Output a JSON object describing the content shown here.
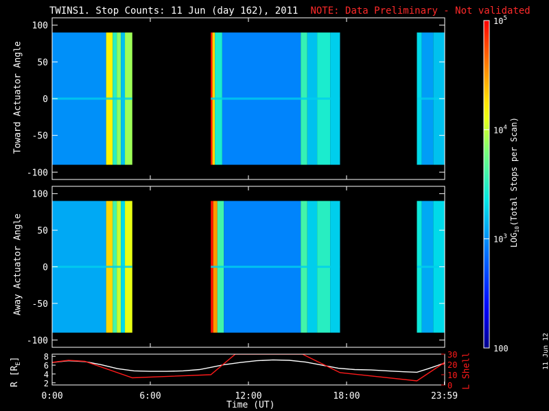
{
  "page": {
    "title": "TWINS1. Stop Counts: 11 Jun (day 162), 2011",
    "note": "NOTE: Data Preliminary - Not validated",
    "date_stamp": "11 Jun 12",
    "colors": {
      "background": "#000000",
      "axes": "#ffffff",
      "note": "#ff2a2a",
      "lshell": "#ff1a1a",
      "radius": "#ffffff"
    }
  },
  "chart_data": [
    {
      "type": "heatmap",
      "ylabel": "Toward Actuator Angle",
      "ylim": [
        -110,
        110
      ],
      "yticks": [
        100,
        50,
        0,
        -50,
        -100
      ],
      "x_hours": [
        0,
        24
      ],
      "angle_range": [
        -90,
        90
      ],
      "data_intervals_h": [
        [
          0,
          4.9
        ],
        [
          9.7,
          17.6
        ],
        [
          22.3,
          24
        ]
      ],
      "bands": [
        {
          "x": [
            0,
            3.3
          ],
          "level": 3.0,
          "note": "background"
        },
        {
          "x": [
            3.3,
            3.7
          ],
          "level": 4.2
        },
        {
          "x": [
            3.7,
            3.95
          ],
          "level": 3.5
        },
        {
          "x": [
            3.95,
            4.2
          ],
          "level": 3.85
        },
        {
          "x": [
            4.2,
            4.45
          ],
          "level": 3.2
        },
        {
          "x": [
            4.45,
            4.9
          ],
          "level": 3.9
        },
        {
          "x": [
            9.7,
            9.8
          ],
          "level": 4.9
        },
        {
          "x": [
            9.8,
            9.95
          ],
          "level": 4.3
        },
        {
          "x": [
            9.95,
            10.4
          ],
          "level": 3.45
        },
        {
          "x": [
            10.4,
            15.2
          ],
          "level": 2.95
        },
        {
          "x": [
            15.2,
            15.6
          ],
          "level": 3.55
        },
        {
          "x": [
            15.6,
            16.2
          ],
          "level": 3.2
        },
        {
          "x": [
            16.2,
            17.0
          ],
          "level": 3.45
        },
        {
          "x": [
            17.0,
            17.6
          ],
          "level": 3.25
        },
        {
          "x": [
            22.3,
            22.6
          ],
          "level": 3.3
        },
        {
          "x": [
            22.6,
            23.3
          ],
          "level": 3.05
        },
        {
          "x": [
            23.3,
            24
          ],
          "level": 3.2
        }
      ]
    },
    {
      "type": "heatmap",
      "ylabel": "Away Actuator Angle",
      "ylim": [
        -110,
        110
      ],
      "yticks": [
        100,
        50,
        0,
        -50,
        -100
      ],
      "x_hours": [
        0,
        24
      ],
      "angle_range": [
        -90,
        90
      ],
      "data_intervals_h": [
        [
          0,
          4.9
        ],
        [
          9.7,
          17.6
        ],
        [
          22.3,
          24
        ]
      ],
      "bands": [
        {
          "x": [
            0,
            3.3
          ],
          "level": 3.1
        },
        {
          "x": [
            3.3,
            3.7
          ],
          "level": 4.3
        },
        {
          "x": [
            3.7,
            3.95
          ],
          "level": 3.6
        },
        {
          "x": [
            3.95,
            4.2
          ],
          "level": 4.0
        },
        {
          "x": [
            4.2,
            4.45
          ],
          "level": 3.3
        },
        {
          "x": [
            4.45,
            4.9
          ],
          "level": 4.1
        },
        {
          "x": [
            9.7,
            9.85
          ],
          "level": 4.95
        },
        {
          "x": [
            9.85,
            10.1
          ],
          "level": 4.5
        },
        {
          "x": [
            10.1,
            10.5
          ],
          "level": 3.6
        },
        {
          "x": [
            10.5,
            15.2
          ],
          "level": 2.95
        },
        {
          "x": [
            15.2,
            15.6
          ],
          "level": 3.6
        },
        {
          "x": [
            15.6,
            16.2
          ],
          "level": 3.25
        },
        {
          "x": [
            16.2,
            17.0
          ],
          "level": 3.5
        },
        {
          "x": [
            17.0,
            17.6
          ],
          "level": 3.25
        },
        {
          "x": [
            22.3,
            22.6
          ],
          "level": 3.4
        },
        {
          "x": [
            22.6,
            23.3
          ],
          "level": 3.1
        },
        {
          "x": [
            23.3,
            24
          ],
          "level": 3.3
        }
      ]
    },
    {
      "type": "line",
      "xlabel": "Time (UT)",
      "xticks": [
        "0:00",
        "6:00",
        "12:00",
        "18:00",
        "23:59"
      ],
      "xtick_hours": [
        0,
        6,
        12,
        18,
        23.98
      ],
      "x_hours": [
        0,
        24
      ],
      "left_axis": {
        "label": "R [R",
        "label_sub": "E",
        "label_end": "]",
        "range": [
          1.5,
          8.5
        ],
        "ticks": [
          2,
          4,
          6,
          8
        ]
      },
      "right_axis": {
        "label": "L Shell",
        "range": [
          0,
          30
        ],
        "ticks": [
          0,
          10,
          20,
          30
        ]
      },
      "series": [
        {
          "axis": "left",
          "color": "#ffffff",
          "x": [
            0,
            1,
            2,
            3,
            4,
            5,
            6,
            7,
            8,
            9,
            9.7,
            10.5,
            11.5,
            12.5,
            13.5,
            14.5,
            15.5,
            16.5,
            17.5,
            18.5,
            19.5,
            20.5,
            21.5,
            22.3,
            23,
            24
          ],
          "y": [
            6.6,
            7.0,
            6.8,
            6.1,
            5.2,
            4.7,
            4.6,
            4.6,
            4.7,
            5.0,
            5.5,
            6.1,
            6.6,
            7.0,
            7.2,
            7.1,
            6.7,
            6.0,
            5.3,
            5.0,
            4.9,
            4.7,
            4.5,
            4.4,
            5.2,
            6.5
          ]
        },
        {
          "axis": "right",
          "color": "#ff1a1a",
          "x": [
            0,
            1,
            2,
            4.9,
            9.7,
            11.2,
            11.3,
            15.2,
            15.3,
            17.6,
            22.3,
            24
          ],
          "y": [
            22,
            24,
            23,
            7,
            10,
            30,
            30,
            30,
            30,
            12,
            4,
            22
          ]
        }
      ]
    },
    {
      "type": "heatmap",
      "role": "colorbar",
      "label": "LOG",
      "label_sub": "10",
      "label_end": "(Total Stops per Scan)",
      "range_log10": [
        2,
        5
      ],
      "ticks": [
        {
          "value": 5,
          "label": "10",
          "sup": "5"
        },
        {
          "value": 4,
          "label": "10",
          "sup": "4"
        },
        {
          "value": 3,
          "label": "10",
          "sup": "3"
        },
        {
          "value": 2,
          "label": "100",
          "sup": ""
        }
      ]
    }
  ]
}
